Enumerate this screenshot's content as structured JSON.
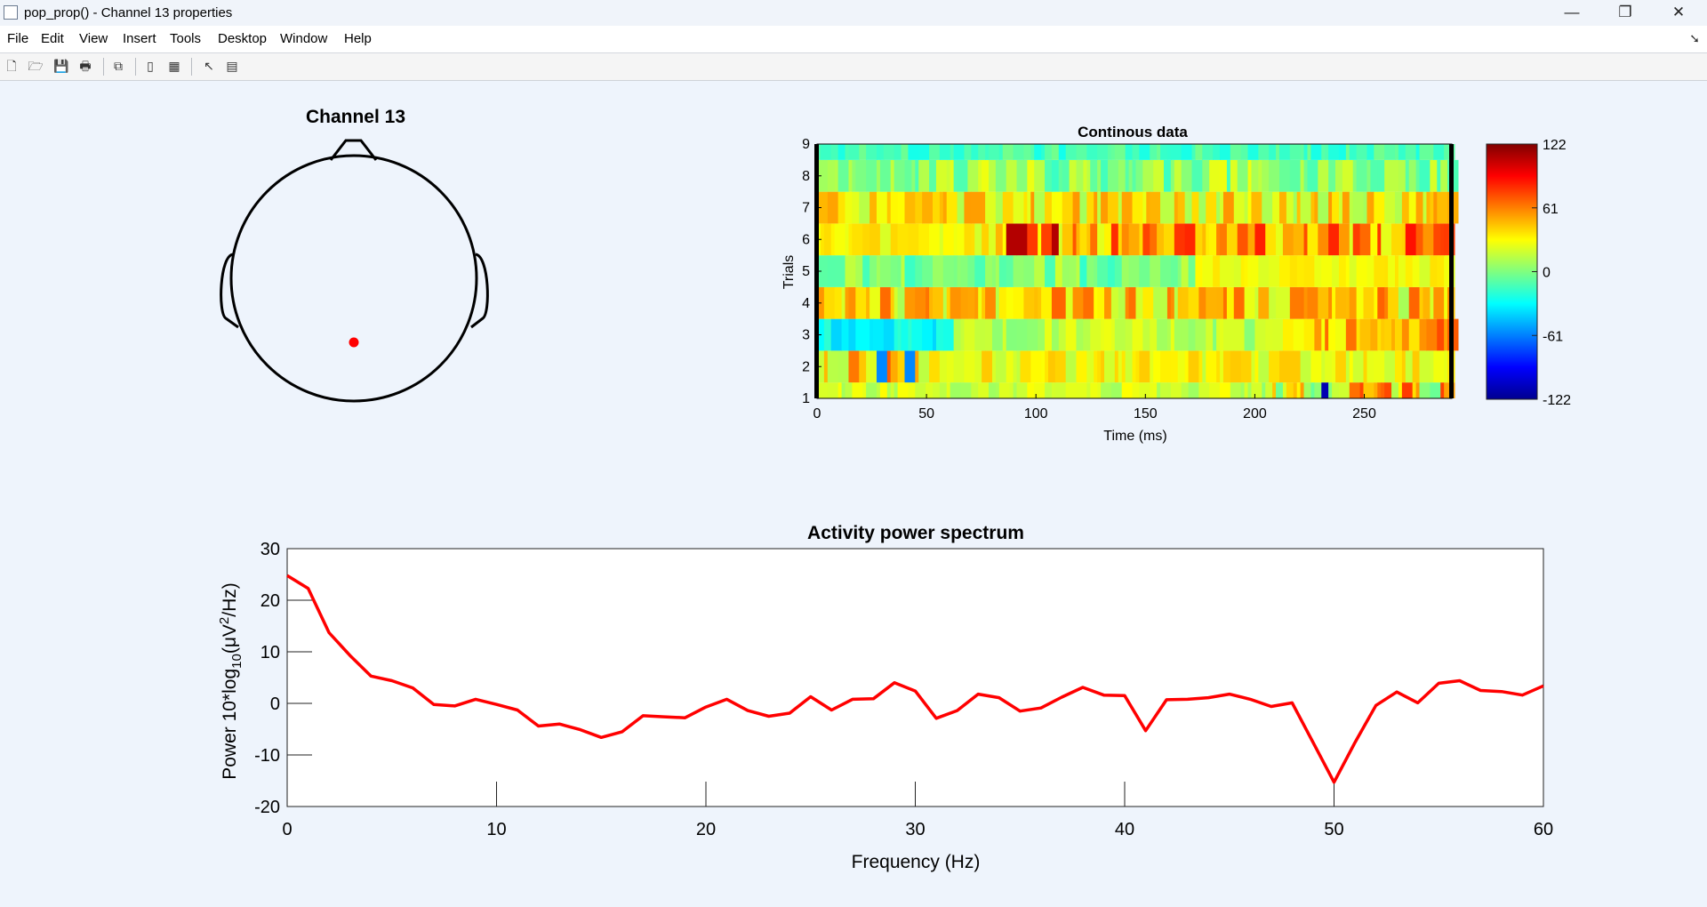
{
  "window": {
    "title": "pop_prop() - Channel 13 properties",
    "minimize": "—",
    "restore": "❐",
    "close": "✕"
  },
  "menu": [
    "File",
    "Edit",
    "View",
    "Insert",
    "Tools",
    "Desktop",
    "Window",
    "Help"
  ],
  "toolbar_icons": [
    "new-figure-icon",
    "open-file-icon",
    "save-icon",
    "print-icon",
    "link-plot-icon",
    "hide-plot-tools-icon",
    "show-plot-tools-icon",
    "edit-plot-icon",
    "property-inspector-icon"
  ],
  "topo": {
    "title": "Channel 13",
    "head_color": "#000000",
    "electrode_color": "#ff0000"
  },
  "erpimage": {
    "title": "Continous data",
    "xlabel": "Time (ms)",
    "ylabel": "Trials",
    "xticks": [
      "0",
      "50",
      "100",
      "150",
      "200",
      "250"
    ],
    "yticks": [
      "1",
      "2",
      "3",
      "4",
      "5",
      "6",
      "7",
      "8",
      "9"
    ],
    "colorbar_ticks": [
      "122",
      "61",
      "0",
      "-61",
      "-122"
    ],
    "colormap": "jet",
    "clim": [
      -122,
      122
    ],
    "xlim": [
      0,
      290
    ]
  },
  "spectrum": {
    "title": "Activity power spectrum",
    "xlabel": "Frequency (Hz)",
    "ylabel_prefix": "Power 10*log",
    "ylabel_sub": "10",
    "ylabel_mid": "(μV",
    "ylabel_sup": "2",
    "ylabel_suffix": "/Hz)",
    "xticks": [
      "0",
      "10",
      "20",
      "30",
      "40",
      "50",
      "60"
    ],
    "yticks": [
      "30",
      "20",
      "10",
      "0",
      "-10",
      "-20"
    ],
    "line_color": "#ff0000"
  },
  "chart_data": {
    "type": "line",
    "title": "Activity power spectrum",
    "xlabel": "Frequency (Hz)",
    "ylabel": "Power 10*log10(μV²/Hz)",
    "xlim": [
      0,
      60
    ],
    "ylim": [
      -20,
      30
    ],
    "x": [
      0,
      1,
      2,
      3,
      4,
      5,
      6,
      7,
      8,
      9,
      10,
      11,
      12,
      13,
      14,
      15,
      16,
      17,
      18,
      19,
      20,
      21,
      22,
      23,
      24,
      25,
      26,
      27,
      28,
      29,
      30,
      31,
      32,
      33,
      34,
      35,
      36,
      37,
      38,
      39,
      40,
      41,
      42,
      43,
      44,
      45,
      46,
      47,
      48,
      49,
      50,
      51,
      52,
      53,
      54,
      55,
      56,
      57,
      58,
      59,
      60
    ],
    "series": [
      {
        "values": [
          24.8,
          22.3,
          13.7,
          9.3,
          5.3,
          4.4,
          3.0,
          -0.2,
          -0.5,
          0.8,
          -0.2,
          -1.3,
          -4.4,
          -4.0,
          -5.1,
          -6.6,
          -5.5,
          -2.4,
          -2.6,
          -2.8,
          -0.7,
          0.8,
          -1.4,
          -2.5,
          -1.9,
          1.3,
          -1.3,
          0.8,
          0.9,
          4.0,
          2.4,
          -2.9,
          -1.4,
          1.8,
          1.1,
          -1.5,
          -0.9,
          1.2,
          3.1,
          1.6,
          1.5,
          -5.3,
          0.7,
          0.8,
          1.1,
          1.8,
          0.8,
          -0.6,
          0.1,
          -7.6,
          -15.3,
          -7.6,
          -0.4,
          2.2,
          0.1,
          3.9,
          4.4,
          2.5,
          2.3,
          1.6,
          3.4
        ]
      }
    ]
  }
}
